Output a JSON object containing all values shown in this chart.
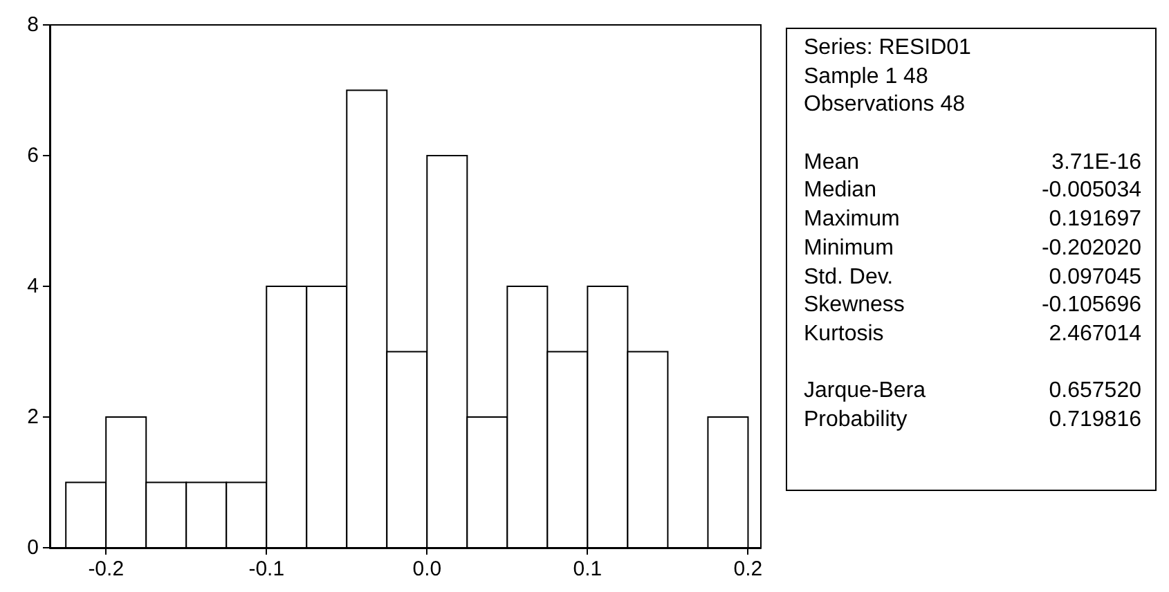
{
  "chart_data": [
    {
      "type": "histogram",
      "bins": [
        -0.225,
        -0.2,
        -0.175,
        -0.15,
        -0.125,
        -0.1,
        -0.075,
        -0.05,
        -0.025,
        0,
        0.025,
        0.05,
        0.075,
        0.1,
        0.125,
        0.15,
        0.175,
        0.2
      ],
      "values": [
        1,
        2,
        1,
        1,
        1,
        4,
        4,
        7,
        3,
        6,
        2,
        4,
        3,
        4,
        3,
        0,
        2
      ],
      "color": "#ffffff",
      "xlim": [
        -0.235,
        0.208
      ],
      "xticks": [
        {
          "value": -0.2,
          "label": "-0.2"
        },
        {
          "value": -0.1,
          "label": "-0.1"
        },
        {
          "value": 0,
          "label": "0.0"
        },
        {
          "value": 0.1,
          "label": "0.1"
        },
        {
          "value": 0.2,
          "label": "0.2"
        }
      ],
      "ylim": [
        0,
        8
      ],
      "yticks": [
        0,
        2,
        4,
        6,
        8
      ],
      "grid": false
    },
    {
      "type": "other",
      "annotations": [
        "Series: RESID01",
        "Sample 1 48",
        "Observations 48"
      ],
      "categories": [
        "Mean",
        "Median",
        "Maximum",
        "Minimum",
        "Std. Dev.",
        "Skewness",
        "Kurtosis",
        null,
        "Jarque-Bera",
        "Probability"
      ],
      "value_labels": [
        "3.71E-16",
        "-0.005034",
        "0.191697",
        "-0.202020",
        "0.097045",
        "-0.105696",
        "2.467014",
        null,
        "0.657520",
        "0.719816"
      ]
    }
  ]
}
